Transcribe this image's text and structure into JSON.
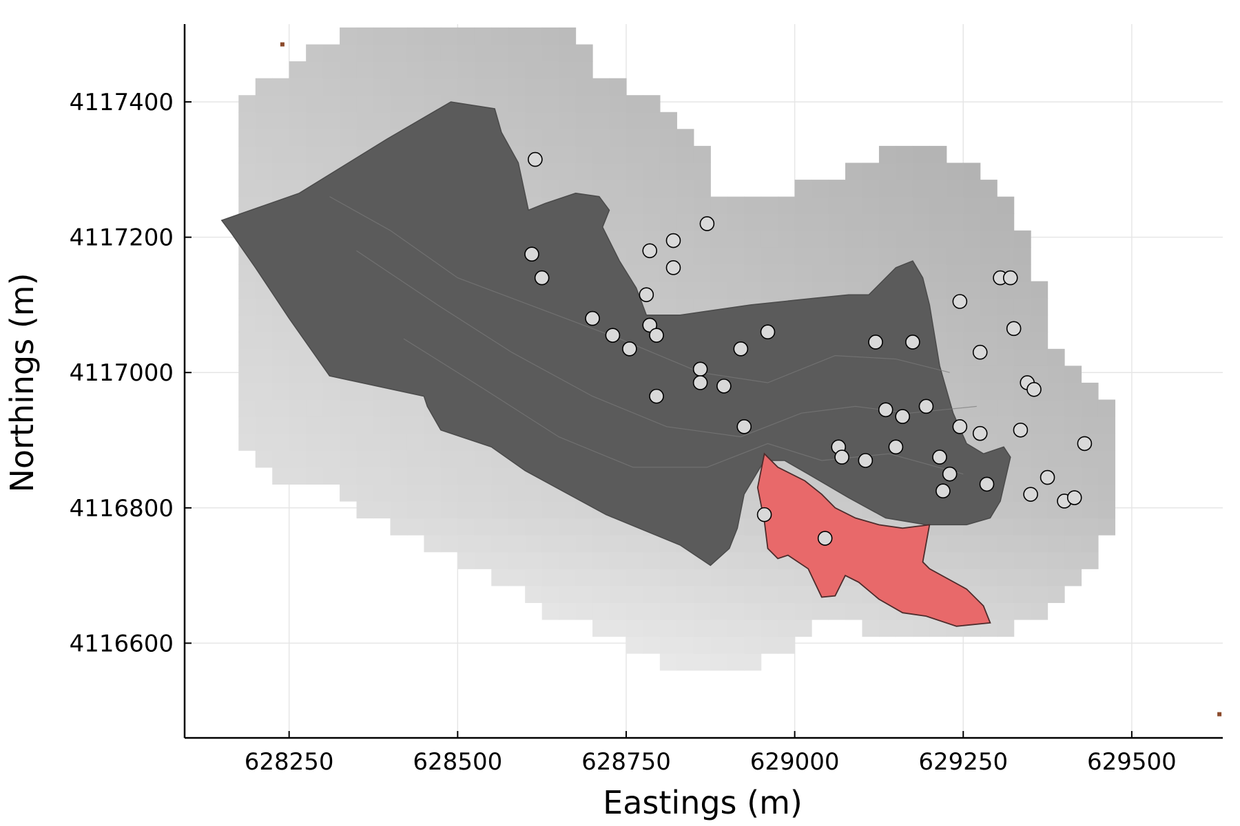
{
  "chart_data": {
    "type": "scatter",
    "title": "",
    "xlabel": "Eastings (m)",
    "ylabel": "Northings (m)",
    "xlim": [
      628095,
      629635
    ],
    "ylim": [
      4116460,
      4117515
    ],
    "x_ticks": [
      628250,
      628500,
      628750,
      629000,
      629250,
      629500
    ],
    "y_ticks": [
      4116600,
      4116800,
      4117000,
      4117200,
      4117400
    ],
    "x_tick_labels": [
      "628250",
      "628500",
      "628750",
      "629000",
      "629250",
      "629500"
    ],
    "y_tick_labels": [
      "4116600",
      "4116800",
      "4117000",
      "4117200",
      "4117400"
    ],
    "grid": true,
    "legend": "none",
    "background_raster": {
      "description_colors": [
        "#cfcfcf",
        "#a8a8a8",
        "#f2f2f2"
      ],
      "extent_x": [
        628175,
        629560
      ],
      "extent_y": [
        4116510,
        4117490
      ]
    },
    "site_polygon": {
      "color": "#5b5b5b",
      "points": [
        [
          628265,
          4117265
        ],
        [
          628395,
          4117345
        ],
        [
          628490,
          4117400
        ],
        [
          628555,
          4117390
        ],
        [
          628565,
          4117355
        ],
        [
          628590,
          4117310
        ],
        [
          628605,
          4117240
        ],
        [
          628630,
          4117250
        ],
        [
          628675,
          4117265
        ],
        [
          628710,
          4117260
        ],
        [
          628725,
          4117240
        ],
        [
          628715,
          4117215
        ],
        [
          628740,
          4117165
        ],
        [
          628765,
          4117125
        ],
        [
          628780,
          4117085
        ],
        [
          628830,
          4117085
        ],
        [
          628935,
          4117100
        ],
        [
          629030,
          4117110
        ],
        [
          629080,
          4117115
        ],
        [
          629110,
          4117115
        ],
        [
          629150,
          4117155
        ],
        [
          629175,
          4117165
        ],
        [
          629190,
          4117140
        ],
        [
          629200,
          4117100
        ],
        [
          629215,
          4117010
        ],
        [
          629235,
          4116940
        ],
        [
          629255,
          4116895
        ],
        [
          629280,
          4116880
        ],
        [
          629310,
          4116890
        ],
        [
          629320,
          4116875
        ],
        [
          629305,
          4116810
        ],
        [
          629290,
          4116785
        ],
        [
          629255,
          4116775
        ],
        [
          629195,
          4116775
        ],
        [
          629135,
          4116785
        ],
        [
          629080,
          4116815
        ],
        [
          629020,
          4116850
        ],
        [
          628985,
          4116870
        ],
        [
          628955,
          4116870
        ],
        [
          628925,
          4116820
        ],
        [
          628915,
          4116770
        ],
        [
          628903,
          4116740
        ],
        [
          628875,
          4116715
        ],
        [
          628830,
          4116745
        ],
        [
          628720,
          4116790
        ],
        [
          628600,
          4116855
        ],
        [
          628550,
          4116890
        ],
        [
          628475,
          4116915
        ],
        [
          628455,
          4116950
        ],
        [
          628450,
          4116965
        ],
        [
          628310,
          4116995
        ],
        [
          628250,
          4117080
        ],
        [
          628200,
          4117155
        ],
        [
          628165,
          4117205
        ],
        [
          628150,
          4117225
        ]
      ]
    },
    "highlight_polygon": {
      "color": "#e8696a",
      "points": [
        [
          628955,
          4116880
        ],
        [
          628975,
          4116860
        ],
        [
          629015,
          4116840
        ],
        [
          629040,
          4116820
        ],
        [
          629060,
          4116800
        ],
        [
          629090,
          4116785
        ],
        [
          629125,
          4116775
        ],
        [
          629160,
          4116770
        ],
        [
          629200,
          4116775
        ],
        [
          629190,
          4116720
        ],
        [
          629200,
          4116710
        ],
        [
          629255,
          4116680
        ],
        [
          629280,
          4116655
        ],
        [
          629290,
          4116630
        ],
        [
          629240,
          4116625
        ],
        [
          629195,
          4116640
        ],
        [
          629160,
          4116645
        ],
        [
          629125,
          4116665
        ],
        [
          629095,
          4116690
        ],
        [
          629075,
          4116700
        ],
        [
          629070,
          4116690
        ],
        [
          629060,
          4116670
        ],
        [
          629040,
          4116668
        ],
        [
          629020,
          4116710
        ],
        [
          628990,
          4116730
        ],
        [
          628975,
          4116725
        ],
        [
          628960,
          4116740
        ],
        [
          628955,
          4116780
        ],
        [
          628945,
          4116830
        ]
      ]
    },
    "corner_marks": {
      "color": "#8b4a2b",
      "points": [
        [
          628240,
          4117485
        ],
        [
          629630,
          4116495
        ]
      ]
    },
    "points": [
      {
        "x": 628615,
        "y": 4117315
      },
      {
        "x": 628610,
        "y": 4117175
      },
      {
        "x": 628625,
        "y": 4117140
      },
      {
        "x": 628700,
        "y": 4117080
      },
      {
        "x": 628730,
        "y": 4117055
      },
      {
        "x": 628755,
        "y": 4117035
      },
      {
        "x": 628780,
        "y": 4117115
      },
      {
        "x": 628785,
        "y": 4117180
      },
      {
        "x": 628820,
        "y": 4117195
      },
      {
        "x": 628820,
        "y": 4117155
      },
      {
        "x": 628870,
        "y": 4117220
      },
      {
        "x": 628785,
        "y": 4117070
      },
      {
        "x": 628795,
        "y": 4117055
      },
      {
        "x": 628795,
        "y": 4116965
      },
      {
        "x": 628860,
        "y": 4117005
      },
      {
        "x": 628860,
        "y": 4116985
      },
      {
        "x": 628895,
        "y": 4116980
      },
      {
        "x": 628920,
        "y": 4117035
      },
      {
        "x": 628960,
        "y": 4117060
      },
      {
        "x": 628925,
        "y": 4116920
      },
      {
        "x": 628955,
        "y": 4116790
      },
      {
        "x": 629045,
        "y": 4116755
      },
      {
        "x": 629065,
        "y": 4116890
      },
      {
        "x": 629070,
        "y": 4116875
      },
      {
        "x": 629105,
        "y": 4116870
      },
      {
        "x": 629120,
        "y": 4117045
      },
      {
        "x": 629135,
        "y": 4116945
      },
      {
        "x": 629150,
        "y": 4116890
      },
      {
        "x": 629160,
        "y": 4116935
      },
      {
        "x": 629175,
        "y": 4117045
      },
      {
        "x": 629195,
        "y": 4116950
      },
      {
        "x": 629215,
        "y": 4116875
      },
      {
        "x": 629220,
        "y": 4116825
      },
      {
        "x": 629230,
        "y": 4116850
      },
      {
        "x": 629245,
        "y": 4116920
      },
      {
        "x": 629245,
        "y": 4117105
      },
      {
        "x": 629275,
        "y": 4117030
      },
      {
        "x": 629275,
        "y": 4116910
      },
      {
        "x": 629285,
        "y": 4116835
      },
      {
        "x": 629305,
        "y": 4117140
      },
      {
        "x": 629320,
        "y": 4117140
      },
      {
        "x": 629325,
        "y": 4117065
      },
      {
        "x": 629335,
        "y": 4116915
      },
      {
        "x": 629345,
        "y": 4116985
      },
      {
        "x": 629350,
        "y": 4116820
      },
      {
        "x": 629355,
        "y": 4116975
      },
      {
        "x": 629375,
        "y": 4116845
      },
      {
        "x": 629400,
        "y": 4116810
      },
      {
        "x": 629415,
        "y": 4116815
      },
      {
        "x": 629430,
        "y": 4116895
      }
    ],
    "point_style": {
      "fill": "#d9d9d9",
      "stroke": "#000000"
    }
  }
}
